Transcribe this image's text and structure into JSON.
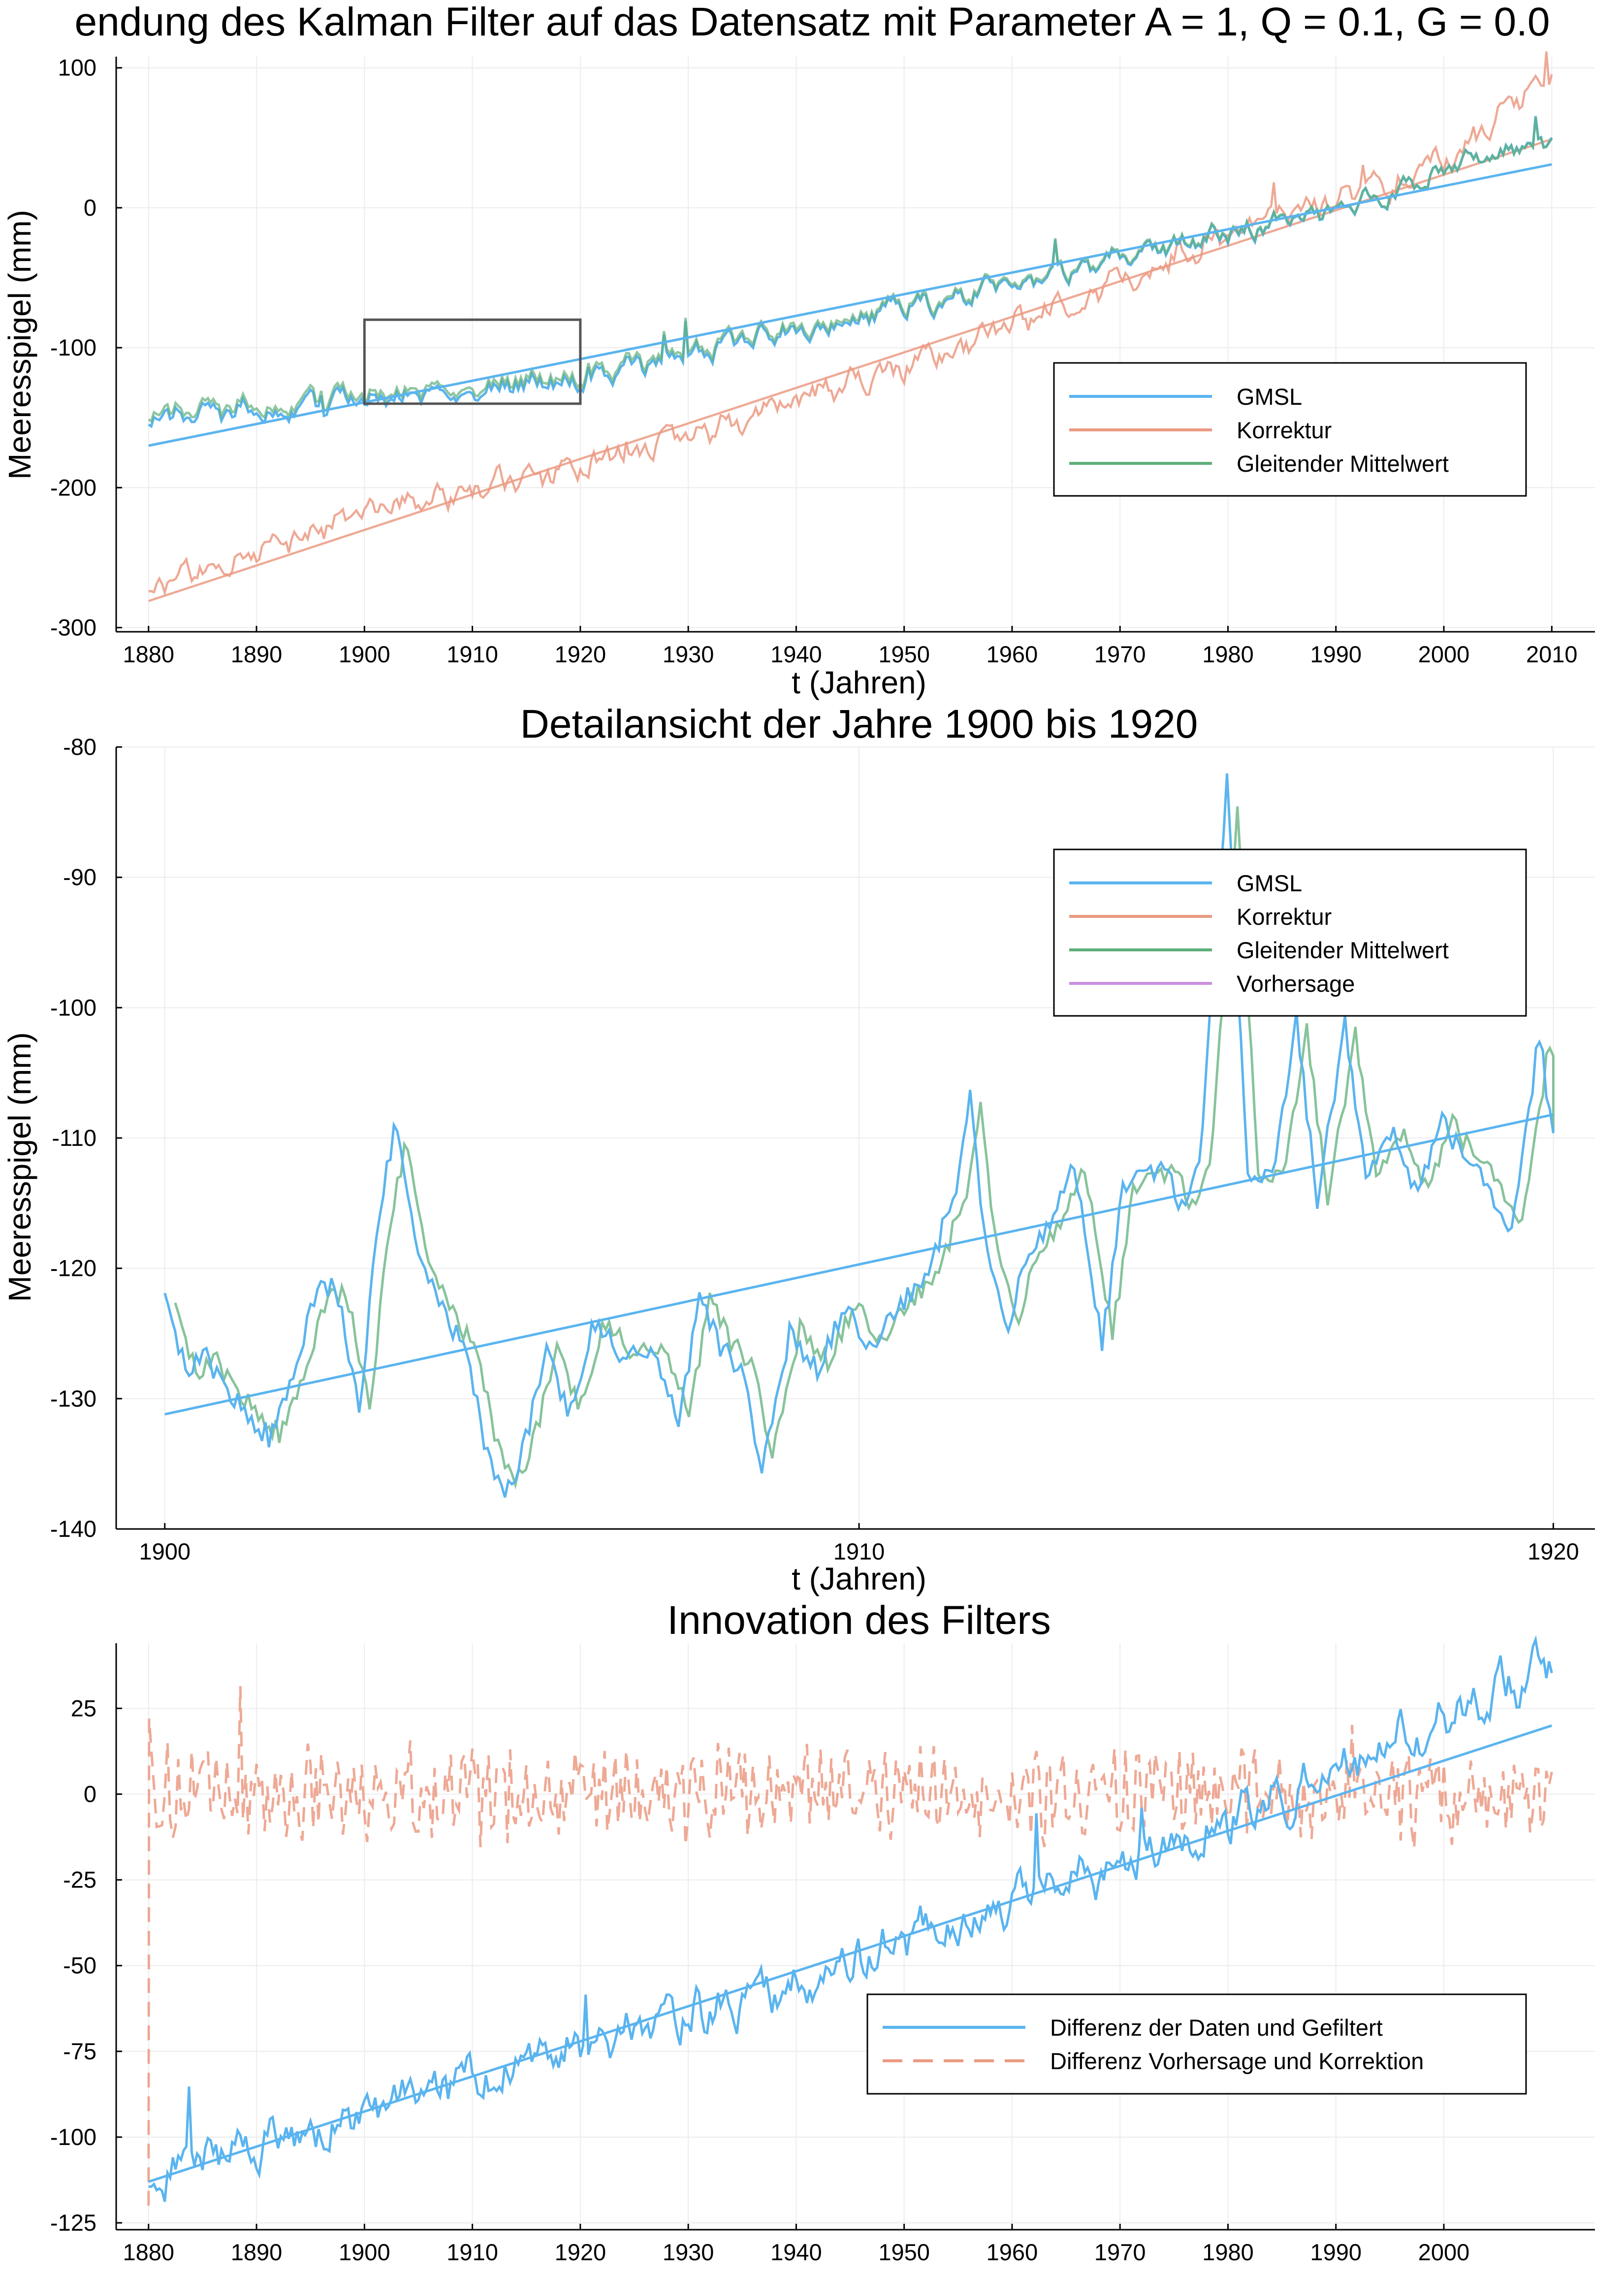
{
  "colors": {
    "GMSL": "#5ab4ef",
    "Korrektur": "#eb9a82",
    "Gleitender Mittelwert": "#5faf7a",
    "Vorhersage": "#c98fe0",
    "box": "#555555"
  },
  "chart_data": [
    {
      "type": "line",
      "title": "endung des Kalman Filter auf das Datensatz mit Parameter A = 1, Q = 0.1, G = 0.0",
      "xlabel": "t (Jahren)",
      "ylabel": "Meeresspigel (mm)",
      "xlim": [
        1877,
        2014
      ],
      "ylim": [
        -303,
        108
      ],
      "xticks": [
        1880,
        1890,
        1900,
        1910,
        1920,
        1930,
        1940,
        1950,
        1960,
        1970,
        1980,
        1990,
        2000,
        2010
      ],
      "yticks": [
        -300,
        -200,
        -100,
        0,
        100
      ],
      "grid": true,
      "legend_position": "right",
      "highlight_box": {
        "x": [
          1900,
          1920
        ],
        "y": [
          -140,
          -80
        ]
      },
      "series": [
        {
          "name": "GMSL",
          "kind": "noisy",
          "trend": [
            [
              1880,
              -152
            ],
            [
              1920,
              -122
            ],
            [
              1960,
              -55
            ],
            [
              1990,
              0
            ],
            [
              2010,
              50
            ]
          ],
          "amplitude": 8
        },
        {
          "name": "GMSL",
          "kind": "line",
          "x": [
            1880,
            2010
          ],
          "y": [
            -170,
            31
          ]
        },
        {
          "name": "Korrektur",
          "kind": "noisy",
          "trend": [
            [
              1880,
              -270
            ],
            [
              1900,
              -220
            ],
            [
              1920,
              -185
            ],
            [
              1940,
              -140
            ],
            [
              1960,
              -85
            ],
            [
              1980,
              -20
            ],
            [
              2000,
              30
            ],
            [
              2010,
              95
            ]
          ],
          "amplitude": 10
        },
        {
          "name": "Korrektur",
          "kind": "line",
          "x": [
            1880,
            2010
          ],
          "y": [
            -281,
            49
          ]
        },
        {
          "name": "Gleitender Mittelwert",
          "kind": "noisy",
          "trend": [
            [
              1880,
              -152
            ],
            [
              1920,
              -122
            ],
            [
              1960,
              -55
            ],
            [
              1990,
              0
            ],
            [
              2010,
              50
            ]
          ],
          "amplitude": 7
        }
      ],
      "legend": [
        "GMSL",
        "Korrektur",
        "Gleitender Mittelwert"
      ]
    },
    {
      "type": "line",
      "title": "Detailansicht der Jahre 1900 bis 1920",
      "xlabel": "t (Jahren)",
      "ylabel": "Meeresspigel (mm)",
      "xlim": [
        1899.3,
        1920.6
      ],
      "ylim": [
        -140,
        -80
      ],
      "xticks": [
        1900,
        1910,
        1920
      ],
      "yticks": [
        -140,
        -130,
        -120,
        -110,
        -100,
        -90,
        -80
      ],
      "grid": true,
      "legend_position": "top-right",
      "series": [
        {
          "name": "GMSL",
          "kind": "points",
          "x": [
            1900,
            1900.3,
            1900.6,
            1901,
            1901.5,
            1901.8,
            1902.2,
            1902.5,
            1902.8,
            1903.0,
            1903.3,
            1903.7,
            1904.0,
            1904.3,
            1904.6,
            1904.9,
            1905.2,
            1905.5,
            1905.8,
            1906.2,
            1906.6,
            1907.0,
            1907.4,
            1907.7,
            1908.0,
            1908.3,
            1908.6,
            1909.0,
            1909.4,
            1909.8,
            1910.2,
            1910.6,
            1911.0,
            1911.4,
            1911.6,
            1911.8,
            1912.1,
            1912.5,
            1912.8,
            1913.1,
            1913.5,
            1913.8,
            1914.1,
            1914.4,
            1914.7,
            1914.9,
            1915.1,
            1915.3,
            1915.6,
            1916.0,
            1916.3,
            1916.6,
            1917.0,
            1917.3,
            1917.7,
            1918.0,
            1918.4,
            1918.8,
            1919.1,
            1919.4,
            1919.8,
            1920
          ],
          "y": [
            -121,
            -128,
            -127,
            -130,
            -133,
            -129,
            -121,
            -122,
            -131,
            -120,
            -109,
            -120,
            -123,
            -126,
            -133,
            -138,
            -133,
            -126,
            -131,
            -124,
            -127,
            -126,
            -132,
            -122,
            -126,
            -128,
            -135,
            -125,
            -128,
            -123,
            -126,
            -123,
            -120,
            -114,
            -107,
            -117,
            -125,
            -118,
            -116,
            -112,
            -126,
            -114,
            -113,
            -112,
            -116,
            -112,
            -98,
            -82,
            -113,
            -112,
            -101,
            -115,
            -101,
            -113,
            -110,
            -114,
            -109,
            -112,
            -114,
            -117,
            -102,
            -110
          ]
        },
        {
          "name": "GMSL",
          "kind": "line",
          "x": [
            1900,
            1920
          ],
          "y": [
            -131.2,
            -108.2
          ]
        },
        {
          "name": "Gleitender Mittelwert",
          "kind": "smooth",
          "shift": 0.15,
          "amp_factor": 0.92
        }
      ],
      "legend": [
        "GMSL",
        "Korrektur",
        "Gleitender Mittelwert",
        "Vorhersage"
      ]
    },
    {
      "type": "line",
      "title": "Innovation des Filters",
      "xlabel": "",
      "ylabel": "",
      "xlim": [
        1877,
        2014
      ],
      "ylim": [
        -127,
        44
      ],
      "xticks": [
        1880,
        1890,
        1900,
        1910,
        1920,
        1930,
        1940,
        1950,
        1960,
        1970,
        1980,
        1990,
        2000
      ],
      "yticks": [
        -125,
        -100,
        -75,
        -50,
        -25,
        0,
        25
      ],
      "grid": true,
      "legend_position": "bottom-right",
      "series": [
        {
          "name": "Differenz der Daten und Gefiltert",
          "kind": "noisy",
          "trend": [
            [
              1880,
              -112
            ],
            [
              1900,
              -92
            ],
            [
              1940,
              -55
            ],
            [
              1980,
              -8
            ],
            [
              2000,
              22
            ],
            [
              2010,
              38
            ]
          ],
          "amplitude": 7
        },
        {
          "name": "Differenz der Daten und Gefiltert",
          "kind": "line",
          "x": [
            1880,
            2010
          ],
          "y": [
            -113,
            20
          ]
        },
        {
          "name": "Differenz Vorhersage und Korrektion",
          "kind": "dashed-noise",
          "x": [
            1880,
            2010
          ],
          "center": 0,
          "amplitude": 12,
          "first_drop": -120
        }
      ],
      "legend": [
        "Differenz der Daten und Gefiltert",
        "Differenz Vorhersage und Korrektion"
      ]
    }
  ]
}
